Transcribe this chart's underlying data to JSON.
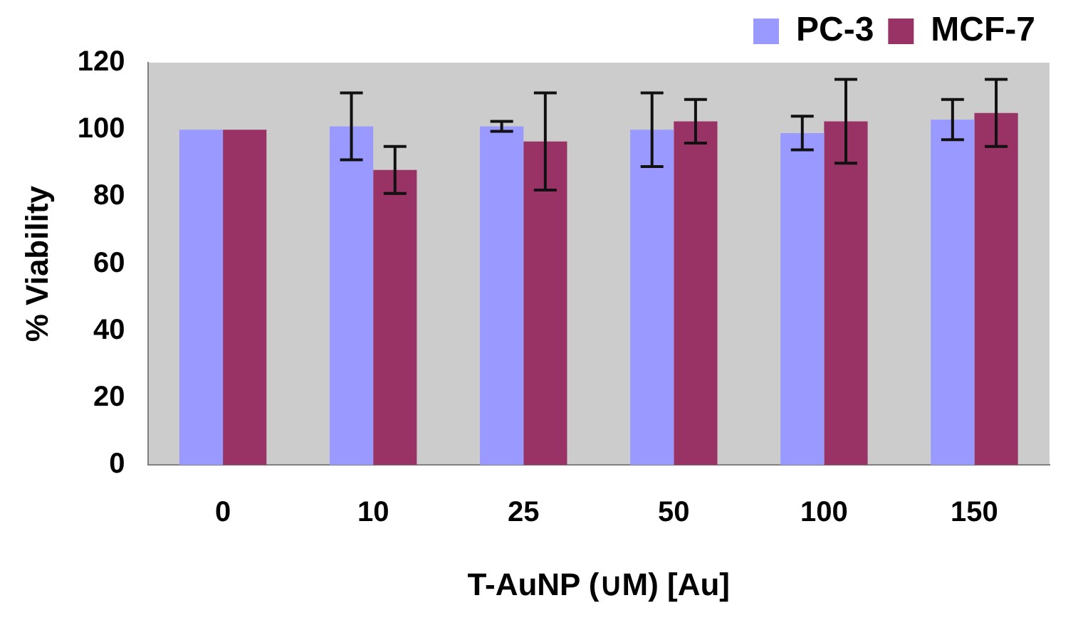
{
  "chart_data": {
    "type": "bar",
    "xlabel": "T-AuNP (∪M) [Au]",
    "ylabel": "% Viability",
    "categories": [
      "0",
      "10",
      "25",
      "50",
      "100",
      "150"
    ],
    "series": [
      {
        "name": "PC-3",
        "color": "#9999ff",
        "values": [
          100,
          101,
          101,
          100,
          99,
          103
        ],
        "errors": [
          null,
          10,
          1.5,
          11,
          5,
          6
        ]
      },
      {
        "name": "MCF-7",
        "color": "#993366",
        "values": [
          100,
          88,
          96.5,
          102.5,
          102.5,
          105
        ],
        "errors": [
          null,
          7,
          14.5,
          6.5,
          12.5,
          10
        ]
      }
    ],
    "ylim": [
      0,
      120
    ],
    "yticks": [
      0,
      20,
      40,
      60,
      80,
      100,
      120
    ],
    "grid": false,
    "legend": "top right"
  }
}
